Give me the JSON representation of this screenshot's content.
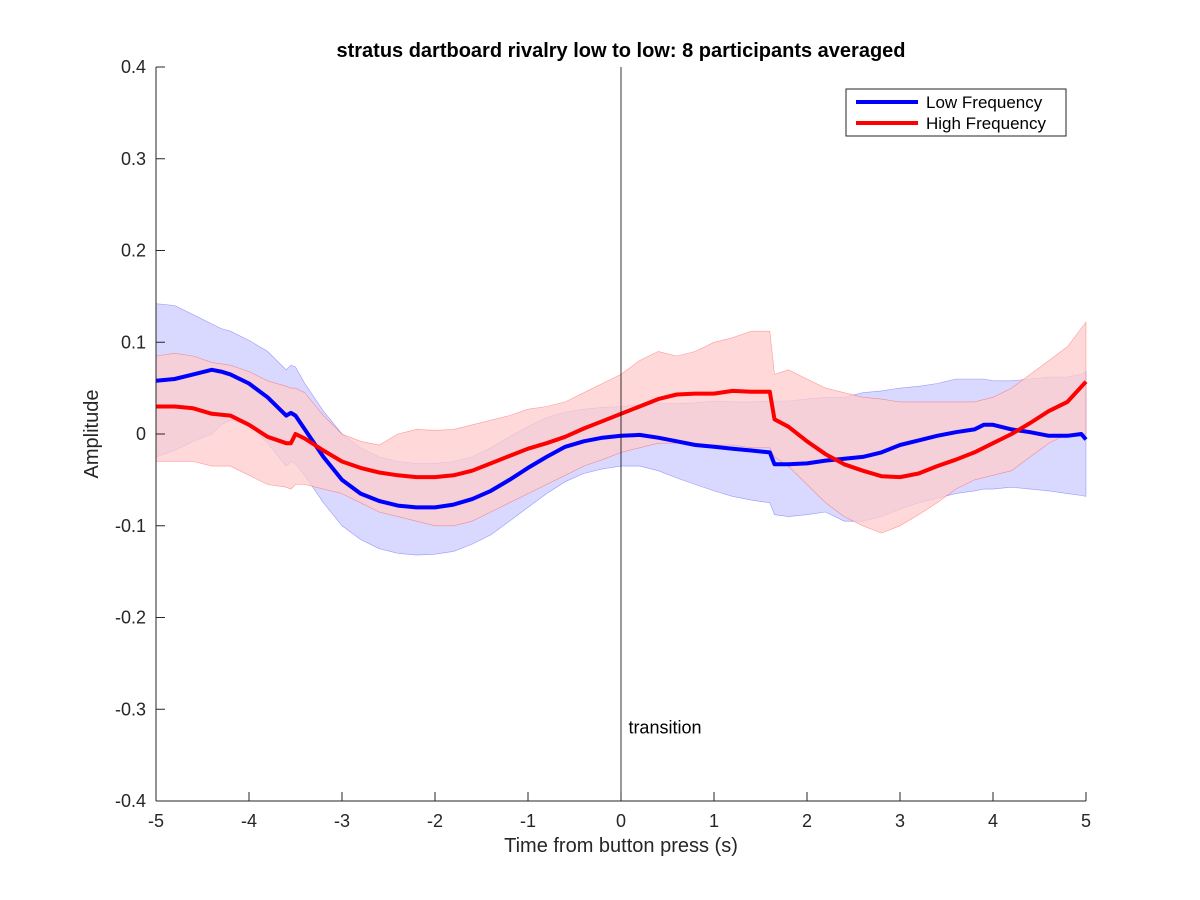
{
  "chart_data": {
    "type": "line",
    "title": "stratus dartboard rivalry low to low: 8 participants averaged",
    "xlabel": "Time from button press (s)",
    "ylabel": "Amplitude",
    "xlim": [
      -5,
      5
    ],
    "ylim": [
      -0.4,
      0.4
    ],
    "xticks": [
      "-5",
      "-4",
      "-3",
      "-2",
      "-1",
      "0",
      "1",
      "2",
      "3",
      "4",
      "5"
    ],
    "yticks": [
      "-0.4",
      "-0.3",
      "-0.2",
      "-0.1",
      "0",
      "0.1",
      "0.2",
      "0.3",
      "0.4"
    ],
    "legend_position": "top-right",
    "grid": false,
    "annotation": {
      "text": "transition",
      "x": 0.08,
      "y": -0.32
    },
    "vline_x": 0,
    "series": [
      {
        "name": "Low Frequency",
        "color": "#0000ff",
        "band_color": "#ccccff",
        "x": [
          -5,
          -4.8,
          -4.6,
          -4.4,
          -4.3,
          -4.2,
          -4.0,
          -3.8,
          -3.6,
          -3.55,
          -3.5,
          -3.4,
          -3.2,
          -3.0,
          -2.8,
          -2.6,
          -2.4,
          -2.2,
          -2.0,
          -1.8,
          -1.6,
          -1.4,
          -1.2,
          -1.0,
          -0.8,
          -0.6,
          -0.4,
          -0.2,
          0,
          0.2,
          0.4,
          0.6,
          0.8,
          1.0,
          1.2,
          1.4,
          1.6,
          1.65,
          1.8,
          2.0,
          2.2,
          2.4,
          2.6,
          2.8,
          3.0,
          3.2,
          3.4,
          3.6,
          3.8,
          3.9,
          4.0,
          4.2,
          4.4,
          4.6,
          4.8,
          4.95,
          5
        ],
        "y": [
          0.058,
          0.06,
          0.065,
          0.07,
          0.068,
          0.065,
          0.055,
          0.04,
          0.02,
          0.023,
          0.02,
          0.005,
          -0.025,
          -0.05,
          -0.065,
          -0.073,
          -0.078,
          -0.08,
          -0.08,
          -0.077,
          -0.071,
          -0.062,
          -0.05,
          -0.037,
          -0.025,
          -0.014,
          -0.008,
          -0.004,
          -0.002,
          -0.001,
          -0.004,
          -0.008,
          -0.012,
          -0.014,
          -0.016,
          -0.018,
          -0.02,
          -0.033,
          -0.033,
          -0.032,
          -0.029,
          -0.027,
          -0.025,
          -0.02,
          -0.012,
          -0.007,
          -0.002,
          0.002,
          0.005,
          0.01,
          0.01,
          0.005,
          0.002,
          -0.002,
          -0.002,
          0.0,
          -0.006
        ],
        "upper": [
          0.142,
          0.14,
          0.13,
          0.12,
          0.115,
          0.112,
          0.102,
          0.09,
          0.07,
          0.075,
          0.073,
          0.055,
          0.025,
          0.0,
          -0.015,
          -0.025,
          -0.03,
          -0.032,
          -0.032,
          -0.03,
          -0.025,
          -0.015,
          -0.003,
          0.008,
          0.018,
          0.024,
          0.027,
          0.029,
          0.03,
          0.032,
          0.033,
          0.033,
          0.034,
          0.036,
          0.035,
          0.035,
          0.036,
          0.036,
          0.036,
          0.038,
          0.04,
          0.04,
          0.045,
          0.047,
          0.05,
          0.052,
          0.055,
          0.06,
          0.06,
          0.06,
          0.058,
          0.058,
          0.06,
          0.062,
          0.062,
          0.065,
          0.068
        ],
        "lower": [
          -0.025,
          -0.018,
          -0.008,
          0.0,
          0.01,
          0.015,
          0.01,
          -0.01,
          -0.035,
          -0.03,
          -0.033,
          -0.045,
          -0.075,
          -0.1,
          -0.115,
          -0.125,
          -0.13,
          -0.132,
          -0.131,
          -0.128,
          -0.12,
          -0.11,
          -0.095,
          -0.08,
          -0.065,
          -0.052,
          -0.043,
          -0.038,
          -0.035,
          -0.035,
          -0.04,
          -0.048,
          -0.055,
          -0.062,
          -0.068,
          -0.072,
          -0.075,
          -0.088,
          -0.09,
          -0.088,
          -0.085,
          -0.095,
          -0.095,
          -0.09,
          -0.082,
          -0.075,
          -0.07,
          -0.065,
          -0.062,
          -0.06,
          -0.06,
          -0.058,
          -0.06,
          -0.062,
          -0.065,
          -0.067,
          -0.068
        ]
      },
      {
        "name": "High Frequency",
        "color": "#ff0000",
        "band_color": "#ffcccc",
        "x": [
          -5,
          -4.8,
          -4.6,
          -4.4,
          -4.2,
          -4.0,
          -3.8,
          -3.6,
          -3.55,
          -3.5,
          -3.4,
          -3.2,
          -3.0,
          -2.8,
          -2.6,
          -2.4,
          -2.2,
          -2.0,
          -1.8,
          -1.6,
          -1.4,
          -1.2,
          -1.0,
          -0.8,
          -0.6,
          -0.4,
          -0.2,
          0,
          0.2,
          0.4,
          0.6,
          0.8,
          1.0,
          1.2,
          1.4,
          1.6,
          1.65,
          1.8,
          2.0,
          2.2,
          2.4,
          2.6,
          2.8,
          3.0,
          3.2,
          3.4,
          3.6,
          3.8,
          4.0,
          4.2,
          4.4,
          4.6,
          4.8,
          5
        ],
        "y": [
          0.03,
          0.03,
          0.028,
          0.022,
          0.02,
          0.01,
          -0.003,
          -0.01,
          -0.01,
          0.0,
          -0.005,
          -0.018,
          -0.03,
          -0.037,
          -0.042,
          -0.045,
          -0.047,
          -0.047,
          -0.045,
          -0.04,
          -0.032,
          -0.024,
          -0.016,
          -0.01,
          -0.003,
          0.006,
          0.014,
          0.022,
          0.03,
          0.038,
          0.043,
          0.044,
          0.044,
          0.047,
          0.046,
          0.046,
          0.016,
          0.008,
          -0.008,
          -0.022,
          -0.033,
          -0.04,
          -0.046,
          -0.047,
          -0.043,
          -0.035,
          -0.028,
          -0.02,
          -0.01,
          0.0,
          0.012,
          0.025,
          0.035,
          0.057
        ],
        "upper": [
          0.085,
          0.088,
          0.085,
          0.078,
          0.075,
          0.068,
          0.058,
          0.052,
          0.05,
          0.05,
          0.045,
          0.02,
          0.0,
          -0.008,
          -0.012,
          0.0,
          0.005,
          0.004,
          0.005,
          0.01,
          0.015,
          0.02,
          0.027,
          0.03,
          0.035,
          0.045,
          0.055,
          0.065,
          0.08,
          0.09,
          0.085,
          0.09,
          0.1,
          0.105,
          0.112,
          0.112,
          0.065,
          0.07,
          0.06,
          0.05,
          0.045,
          0.04,
          0.038,
          0.035,
          0.035,
          0.035,
          0.035,
          0.035,
          0.04,
          0.05,
          0.065,
          0.08,
          0.095,
          0.122
        ],
        "lower": [
          -0.03,
          -0.03,
          -0.03,
          -0.035,
          -0.035,
          -0.045,
          -0.055,
          -0.058,
          -0.06,
          -0.055,
          -0.055,
          -0.06,
          -0.065,
          -0.075,
          -0.085,
          -0.09,
          -0.095,
          -0.1,
          -0.1,
          -0.095,
          -0.085,
          -0.075,
          -0.065,
          -0.055,
          -0.045,
          -0.035,
          -0.028,
          -0.02,
          -0.015,
          -0.01,
          -0.01,
          -0.01,
          -0.012,
          -0.012,
          -0.015,
          -0.015,
          -0.025,
          -0.035,
          -0.055,
          -0.075,
          -0.09,
          -0.1,
          -0.108,
          -0.1,
          -0.088,
          -0.075,
          -0.06,
          -0.05,
          -0.045,
          -0.04,
          -0.025,
          -0.01,
          0.0,
          0.0
        ]
      }
    ]
  }
}
